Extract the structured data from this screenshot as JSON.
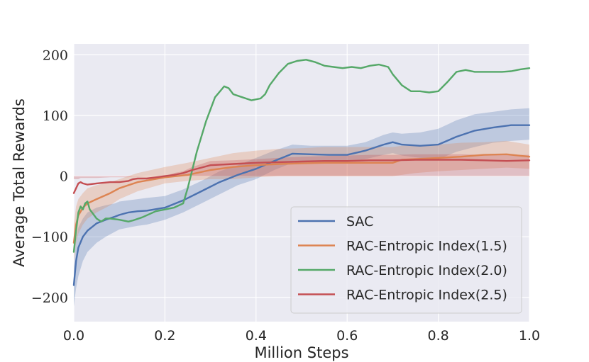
{
  "chart_data": {
    "type": "line",
    "title": "",
    "xlabel": "Million Steps",
    "ylabel": "Average Total Rewards",
    "xlim": [
      0.0,
      1.0
    ],
    "ylim": [
      -240,
      218
    ],
    "xticks": [
      0.0,
      0.2,
      0.4,
      0.6,
      0.8,
      1.0
    ],
    "xtick_labels": [
      "0.0",
      "0.2",
      "0.4",
      "0.6",
      "0.8",
      "1.0"
    ],
    "yticks": [
      -200,
      -100,
      0,
      100,
      200
    ],
    "ytick_labels": [
      "−200",
      "−100",
      "0",
      "100",
      "200"
    ],
    "grid": true,
    "legend_position": "lower-right",
    "series": [
      {
        "name": "SAC",
        "color": "#4c72b0",
        "x": [
          0.0,
          0.005,
          0.01,
          0.02,
          0.03,
          0.05,
          0.07,
          0.09,
          0.1,
          0.12,
          0.14,
          0.16,
          0.2,
          0.24,
          0.28,
          0.32,
          0.36,
          0.4,
          0.44,
          0.48,
          0.52,
          0.56,
          0.6,
          0.64,
          0.68,
          0.7,
          0.72,
          0.76,
          0.8,
          0.84,
          0.88,
          0.92,
          0.96,
          1.0
        ],
        "y": [
          -180,
          -140,
          -118,
          -100,
          -90,
          -78,
          -72,
          -67,
          -64,
          -60,
          -58,
          -57,
          -52,
          -40,
          -25,
          -10,
          2,
          12,
          25,
          37,
          36,
          35,
          35,
          42,
          52,
          56,
          52,
          50,
          52,
          65,
          75,
          80,
          84,
          84
        ],
        "band_lower": [
          -215,
          -185,
          -165,
          -140,
          -125,
          -110,
          -100,
          -92,
          -88,
          -85,
          -82,
          -80,
          -72,
          -60,
          -45,
          -30,
          -15,
          -5,
          10,
          22,
          22,
          22,
          23,
          28,
          35,
          38,
          34,
          30,
          28,
          40,
          48,
          55,
          58,
          60
        ],
        "band_upper": [
          -150,
          -105,
          -85,
          -70,
          -60,
          -52,
          -48,
          -45,
          -42,
          -40,
          -38,
          -36,
          -33,
          -22,
          -8,
          8,
          18,
          30,
          42,
          52,
          50,
          50,
          50,
          56,
          68,
          72,
          70,
          72,
          78,
          92,
          102,
          106,
          110,
          112
        ]
      },
      {
        "name": "RAC-Entropic Index(1.5)",
        "color": "#dd8452",
        "x": [
          0.0,
          0.005,
          0.01,
          0.02,
          0.03,
          0.05,
          0.08,
          0.1,
          0.14,
          0.2,
          0.25,
          0.3,
          0.35,
          0.4,
          0.45,
          0.5,
          0.55,
          0.6,
          0.65,
          0.7,
          0.72,
          0.75,
          0.8,
          0.85,
          0.9,
          0.95,
          1.0
        ],
        "y": [
          -110,
          -80,
          -65,
          -52,
          -45,
          -38,
          -28,
          -20,
          -10,
          -2,
          2,
          10,
          15,
          18,
          20,
          21,
          22,
          22,
          22,
          22,
          27,
          28,
          30,
          32,
          35,
          36,
          32
        ],
        "band_lower": [
          -140,
          -110,
          -95,
          -80,
          -70,
          -60,
          -48,
          -38,
          -25,
          -12,
          -8,
          -5,
          -5,
          -2,
          0,
          0,
          0,
          0,
          0,
          0,
          2,
          5,
          8,
          10,
          12,
          14,
          12
        ],
        "band_upper": [
          -80,
          -50,
          -38,
          -28,
          -20,
          -15,
          -10,
          -5,
          5,
          15,
          22,
          30,
          38,
          42,
          45,
          46,
          48,
          48,
          48,
          48,
          50,
          50,
          52,
          55,
          56,
          58,
          52
        ]
      },
      {
        "name": "RAC-Entropic Index(2.0)",
        "color": "#55a868",
        "x": [
          0.0,
          0.005,
          0.01,
          0.015,
          0.02,
          0.025,
          0.03,
          0.035,
          0.04,
          0.05,
          0.06,
          0.07,
          0.08,
          0.1,
          0.12,
          0.13,
          0.15,
          0.18,
          0.2,
          0.22,
          0.24,
          0.25,
          0.27,
          0.29,
          0.31,
          0.33,
          0.34,
          0.35,
          0.37,
          0.39,
          0.41,
          0.42,
          0.43,
          0.45,
          0.47,
          0.49,
          0.51,
          0.53,
          0.55,
          0.57,
          0.59,
          0.61,
          0.63,
          0.65,
          0.67,
          0.69,
          0.7,
          0.72,
          0.74,
          0.76,
          0.78,
          0.8,
          0.82,
          0.84,
          0.86,
          0.88,
          0.9,
          0.92,
          0.94,
          0.96,
          0.98,
          1.0
        ],
        "y": [
          -125,
          -90,
          -60,
          -50,
          -55,
          -45,
          -42,
          -55,
          -60,
          -70,
          -75,
          -70,
          -70,
          -72,
          -75,
          -73,
          -68,
          -58,
          -55,
          -52,
          -45,
          -20,
          40,
          90,
          130,
          148,
          145,
          135,
          130,
          125,
          128,
          135,
          150,
          170,
          185,
          190,
          192,
          188,
          182,
          180,
          178,
          180,
          178,
          182,
          184,
          180,
          168,
          150,
          140,
          140,
          138,
          140,
          155,
          172,
          175,
          172,
          172,
          172,
          172,
          173,
          176,
          178
        ],
        "band_lower": [],
        "band_upper": []
      },
      {
        "name": "RAC-Entropic Index(2.5)",
        "color": "#c44e52",
        "x": [
          0.0,
          0.005,
          0.01,
          0.015,
          0.02,
          0.03,
          0.05,
          0.08,
          0.1,
          0.12,
          0.13,
          0.14,
          0.16,
          0.18,
          0.2,
          0.22,
          0.24,
          0.26,
          0.28,
          0.3,
          0.35,
          0.4,
          0.45,
          0.5,
          0.55,
          0.6,
          0.65,
          0.7,
          0.75,
          0.8,
          0.85,
          0.9,
          0.95,
          1.0
        ],
        "y": [
          -28,
          -20,
          -12,
          -10,
          -12,
          -14,
          -12,
          -10,
          -10,
          -8,
          -5,
          -4,
          -4,
          -2,
          0,
          2,
          5,
          10,
          14,
          18,
          20,
          22,
          23,
          24,
          25,
          25,
          26,
          26,
          27,
          27,
          27,
          26,
          25,
          26
        ],
        "band_lower": [
          -5,
          -5,
          -5,
          -3,
          -3,
          -3,
          -3,
          -2,
          -2,
          -2,
          -1,
          -1,
          0,
          0,
          0,
          0,
          0,
          0,
          0,
          0,
          0,
          0,
          0,
          0,
          0,
          0,
          0,
          0,
          0,
          0,
          0,
          0,
          0,
          0
        ],
        "band_upper": [
          0,
          0,
          0,
          0,
          0,
          0,
          0,
          0,
          0,
          0,
          0,
          0,
          0,
          0,
          0,
          5,
          8,
          15,
          20,
          25,
          26,
          28,
          30,
          32,
          33,
          34,
          35,
          35,
          36,
          36,
          36,
          35,
          35,
          35
        ]
      }
    ]
  }
}
